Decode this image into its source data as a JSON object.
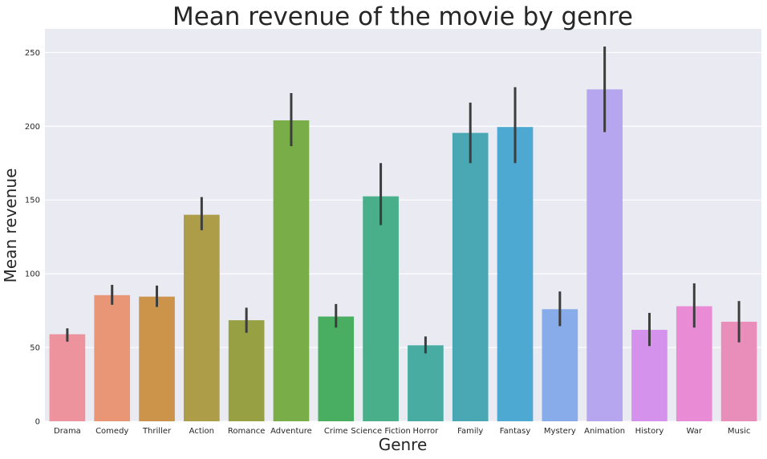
{
  "chart_data": {
    "type": "bar",
    "title": "Mean revenue of the movie by genre",
    "xlabel": "Genre",
    "ylabel": "Mean revenue",
    "ylim": [
      0,
      266
    ],
    "yticks": [
      0,
      50,
      100,
      150,
      200,
      250
    ],
    "grid": true,
    "legend": "none",
    "categories": [
      "Drama",
      "Comedy",
      "Thriller",
      "Action",
      "Romance",
      "Adventure",
      "Crime",
      "Science Fiction",
      "Horror",
      "Family",
      "Fantasy",
      "Mystery",
      "Animation",
      "History",
      "War",
      "Music"
    ],
    "values": [
      59,
      85.5,
      84.5,
      140,
      68.5,
      204,
      71,
      152.5,
      51.5,
      195.5,
      199.5,
      76,
      225,
      62,
      78,
      67.5
    ],
    "error_low": [
      54,
      79,
      77.5,
      129.5,
      60,
      186.5,
      63.5,
      133,
      46,
      175,
      175,
      64.5,
      196,
      51,
      63.5,
      53.5
    ],
    "error_high": [
      63,
      92.5,
      92,
      152,
      77,
      222.5,
      79.5,
      175,
      57.5,
      216,
      226.5,
      88,
      254,
      73.5,
      93.5,
      81.5
    ],
    "colors": [
      "#ec939d",
      "#e99676",
      "#cc944a",
      "#ad9c48",
      "#97a043",
      "#79ad48",
      "#4aae62",
      "#49ae8a",
      "#49aca3",
      "#4aa8b5",
      "#4ea9d2",
      "#88acea",
      "#b6a5ef",
      "#d592ec",
      "#e98bd5",
      "#e98ebb"
    ]
  }
}
